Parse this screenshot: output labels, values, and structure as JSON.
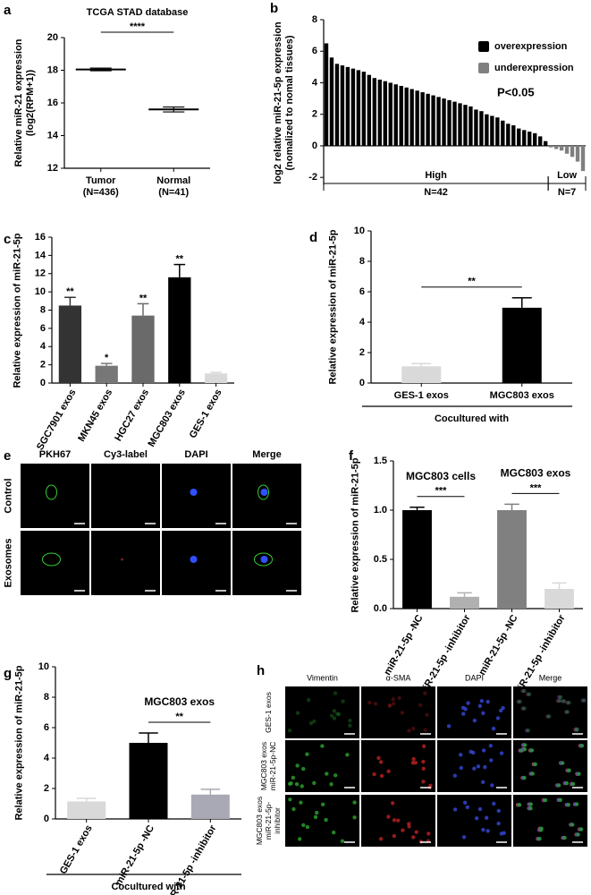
{
  "chart_data": [
    {
      "panel": "a",
      "type": "dotplot",
      "title": "TCGA STAD database",
      "y_label": "Relative miR-21 expression (log2(RPM+1))",
      "categories": [
        "Tumor (N=436)",
        "Normal (N=41)"
      ],
      "values": [
        18.05,
        15.6
      ],
      "errors": [
        0.08,
        0.15
      ],
      "color": "#000000",
      "ylim": [
        12,
        20
      ],
      "yticks": [
        12,
        14,
        16,
        18,
        20
      ],
      "significance": "****"
    },
    {
      "panel": "b",
      "type": "bar",
      "y_label": "log2 relative miR-21-5p expression (nomalized to nomal tissues)",
      "categories": [
        null,
        null,
        null,
        null,
        null,
        null,
        null,
        null,
        null,
        null,
        null,
        null,
        null,
        null,
        null,
        null,
        null,
        null,
        null,
        null,
        null,
        null,
        null,
        null,
        null,
        null,
        null,
        null,
        null,
        null,
        null,
        null,
        null,
        null,
        null,
        null,
        null,
        null,
        null,
        null,
        null,
        null,
        null,
        null,
        null,
        null,
        null,
        null,
        null
      ],
      "series": [
        {
          "name": "overexpression",
          "color": "#000000",
          "values": [
            6.5,
            5.6,
            5.2,
            5.1,
            5.0,
            4.9,
            4.8,
            4.7,
            4.5,
            4.3,
            4.2,
            4.1,
            4.0,
            3.9,
            3.8,
            3.7,
            3.6,
            3.5,
            3.4,
            3.3,
            3.2,
            3.1,
            3.0,
            2.9,
            2.8,
            2.7,
            2.6,
            2.5,
            2.3,
            2.2,
            2.0,
            1.9,
            1.8,
            1.6,
            1.4,
            1.3,
            1.1,
            1.0,
            0.9,
            0.8,
            0.6,
            0.3,
            null,
            null,
            null,
            null,
            null,
            null,
            null
          ]
        },
        {
          "name": "underexpression",
          "color": "#808080",
          "values": [
            null,
            null,
            null,
            null,
            null,
            null,
            null,
            null,
            null,
            null,
            null,
            null,
            null,
            null,
            null,
            null,
            null,
            null,
            null,
            null,
            null,
            null,
            null,
            null,
            null,
            null,
            null,
            null,
            null,
            null,
            null,
            null,
            null,
            null,
            null,
            null,
            null,
            null,
            null,
            null,
            null,
            null,
            -0.1,
            -0.2,
            -0.3,
            -0.5,
            -0.7,
            -1.0,
            -1.6
          ]
        }
      ],
      "ylim": [
        -2.5,
        8
      ],
      "yticks": [
        -2,
        0,
        2,
        4,
        6,
        8
      ],
      "annotation": "P<0.05",
      "groups": [
        {
          "name": "High",
          "label": "N=42"
        },
        {
          "name": "Low",
          "label": "N=7"
        }
      ]
    },
    {
      "panel": "c",
      "type": "errorbar",
      "y_label": "Relative expression of miR-21-5p",
      "ylim": [
        0,
        16
      ],
      "yticks": [
        0,
        2,
        4,
        6,
        8,
        10,
        12,
        14,
        16
      ],
      "groups": [
        {
          "categories": [
            "SGC7901 exos",
            "MKN45 exos",
            "HGC27 exos",
            "MGC803 exos",
            "GES-1 exos"
          ],
          "values": [
            8.5,
            1.9,
            7.4,
            11.6,
            1.05
          ],
          "errors": [
            0.9,
            0.25,
            1.3,
            1.4,
            0.12
          ],
          "colors": [
            "#333333",
            "#777777",
            "#6a6a6a",
            "#000000",
            "#d9d9d9"
          ],
          "stars": [
            "**",
            "*",
            "**",
            "**",
            null
          ]
        }
      ]
    },
    {
      "panel": "d",
      "type": "errorbar",
      "y_label": "Relative expression of miR-21-5p",
      "ylim": [
        0,
        10
      ],
      "yticks": [
        0,
        2,
        4,
        6,
        8,
        10
      ],
      "x_group_label": "Cocultured with",
      "groups": [
        {
          "categories": [
            "GES-1 exos",
            "MGC803 exos"
          ],
          "values": [
            1.1,
            4.95
          ],
          "errors": [
            0.18,
            0.65
          ],
          "colors": [
            "#d9d9d9",
            "#000000"
          ],
          "significance": "**"
        }
      ]
    },
    {
      "panel": "f",
      "type": "errorbar",
      "y_label": "Relative expression of miR-21-5p",
      "ylim": [
        0,
        1.5
      ],
      "yticks": [
        {
          "value": 0,
          "label": "0.0"
        },
        0.5,
        {
          "value": 1,
          "label": "1.0"
        },
        1.5
      ],
      "groups": [
        {
          "name": "MGC803 cells",
          "categories": [
            "miR-21-5p -NC",
            "miR-21-5p -inhibitor"
          ],
          "values": [
            1.0,
            0.12
          ],
          "errors": [
            0.03,
            0.04
          ],
          "colors": [
            "#000000",
            "#b0b0b0"
          ],
          "significance": "***"
        },
        {
          "name": "MGC803 exos",
          "categories": [
            "miR-21-5p -NC",
            "miR-21-5p -inhibitor"
          ],
          "values": [
            1.0,
            0.2
          ],
          "errors": [
            0.06,
            0.06
          ],
          "colors": [
            "#808080",
            "#d9d9d9"
          ],
          "significance": "***"
        }
      ]
    },
    {
      "panel": "g",
      "type": "errorbar",
      "y_label": "Relative expression of miR-21-5p",
      "ylim": [
        0,
        10
      ],
      "yticks": [
        0,
        2,
        4,
        6,
        8,
        10
      ],
      "x_group_label": "Cocultured with",
      "groups": [
        {
          "categories": [
            "GES-1 exos"
          ],
          "values": [
            1.15
          ],
          "errors": [
            0.2
          ],
          "colors": [
            "#d9d9d9"
          ]
        },
        {
          "name": "MGC803 exos",
          "categories": [
            "miR-21-5p -NC",
            "miR-21-5p -inhibitor"
          ],
          "values": [
            5.0,
            1.6
          ],
          "errors": [
            0.65,
            0.35
          ],
          "colors": [
            "#000000",
            "#a9a9b5"
          ],
          "significance": "**"
        }
      ]
    }
  ],
  "image_panels": [
    {
      "panel": "e",
      "columns": [
        "PKH67",
        "Cy3-label",
        "DAPI",
        "Merge"
      ],
      "rows": [
        "Control",
        "Exosomes"
      ]
    },
    {
      "panel": "h",
      "columns": [
        "Vimentin",
        "α-SMA",
        "DAPI",
        "Merge"
      ],
      "rows": [
        "GES-1 exos",
        "MGC803 exos miR-21-5p-NC",
        "MGC803 exos miR-21-5p-inhibitor"
      ]
    }
  ]
}
